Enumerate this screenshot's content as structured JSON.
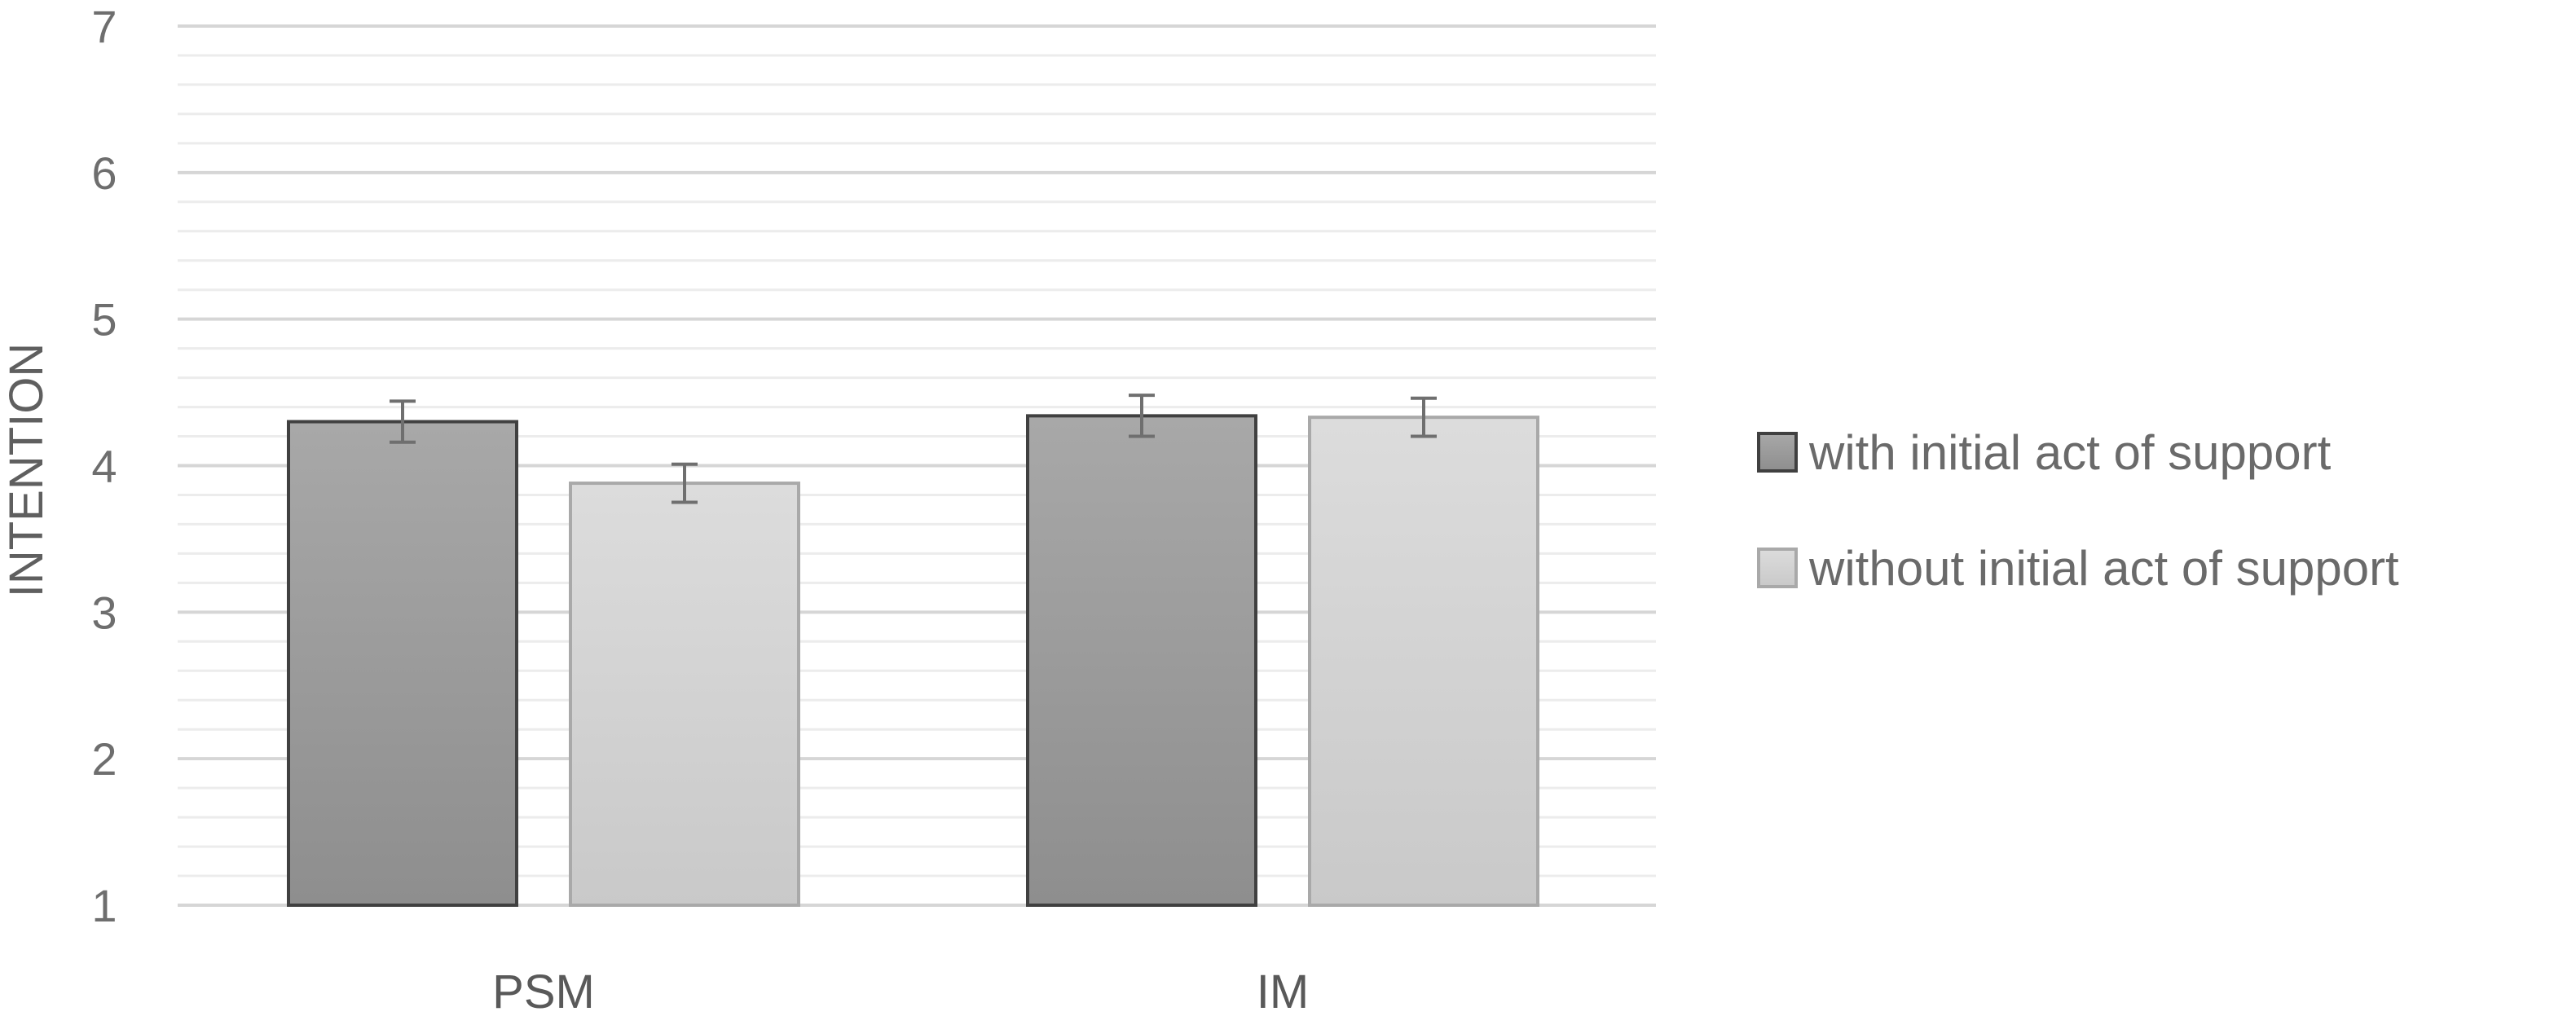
{
  "chart_data": {
    "type": "bar",
    "title": "",
    "xlabel": "",
    "ylabel": "INTENTION",
    "ylim": [
      1,
      7
    ],
    "yticks": [
      1,
      2,
      3,
      4,
      5,
      6,
      7
    ],
    "grid": true,
    "legend_position": "right",
    "categories": [
      "PSM",
      "IM"
    ],
    "series": [
      {
        "name": "with initial act of support",
        "values": [
          4.3,
          4.34
        ],
        "errors": [
          0.14,
          0.14
        ],
        "fill_top": "#a8a8a8",
        "fill_bottom": "#8e8e8e",
        "stroke": "#404040"
      },
      {
        "name": "without initial act of support",
        "values": [
          3.88,
          4.33
        ],
        "errors": [
          0.13,
          0.13
        ],
        "fill_top": "#dcdcdc",
        "fill_bottom": "#c9c9c9",
        "stroke": "#a9a9a9"
      }
    ],
    "colors": {
      "grid_major": "#d6d6d6",
      "grid_minor": "#ececec",
      "error_bar": "#6f6f6f"
    }
  }
}
